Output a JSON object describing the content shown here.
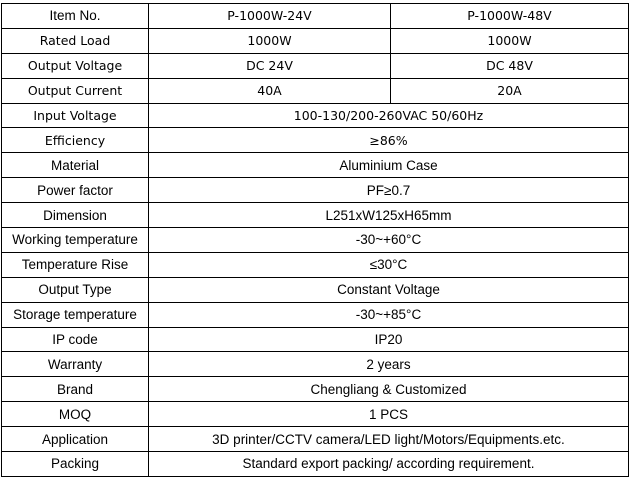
{
  "header": {
    "label": "Item No.",
    "models": [
      "P-1000W-24V",
      "P-1000W-48V"
    ]
  },
  "split_rows": [
    {
      "label": "Rated Load",
      "values": [
        "1000W",
        "1000W"
      ]
    },
    {
      "label": "Output Voltage",
      "values": [
        "DC 24V",
        "DC 48V"
      ]
    },
    {
      "label": "Output Current",
      "values": [
        "40A",
        "20A"
      ]
    }
  ],
  "rows": [
    {
      "label": "Input Voltage",
      "value": "100-130/200-260VAC 50/60Hz",
      "font": "v"
    },
    {
      "label": "Efficiency",
      "value": "≥86%",
      "font": "v"
    },
    {
      "label": "Material",
      "value": "Aluminium Case",
      "font": "a"
    },
    {
      "label": "Power factor",
      "value": "PF≥0.7",
      "font": "a"
    },
    {
      "label": "Dimension",
      "value": "L251xW125xH65mm",
      "font": "a"
    },
    {
      "label": "Working temperature",
      "value": "-30~+60°C",
      "font": "a"
    },
    {
      "label": "Temperature Rise",
      "value": "≤30°C",
      "font": "a"
    },
    {
      "label": "Output Type",
      "value": "Constant Voltage",
      "font": "a"
    },
    {
      "label": "Storage temperature",
      "value": "-30~+85°C",
      "font": "a"
    },
    {
      "label": "IP code",
      "value": "IP20",
      "font": "a"
    },
    {
      "label": "Warranty",
      "value": "2 years",
      "font": "a"
    },
    {
      "label": "Brand",
      "value": "Chengliang & Customized",
      "font": "a"
    },
    {
      "label": "MOQ",
      "value": "1 PCS",
      "font": "a"
    },
    {
      "label": "Application",
      "value": "3D printer/CCTV camera/LED light/Motors/Equipments.etc.",
      "font": "a"
    },
    {
      "label": "Packing",
      "value": "Standard export packing/ according requirement.",
      "font": "a"
    }
  ]
}
